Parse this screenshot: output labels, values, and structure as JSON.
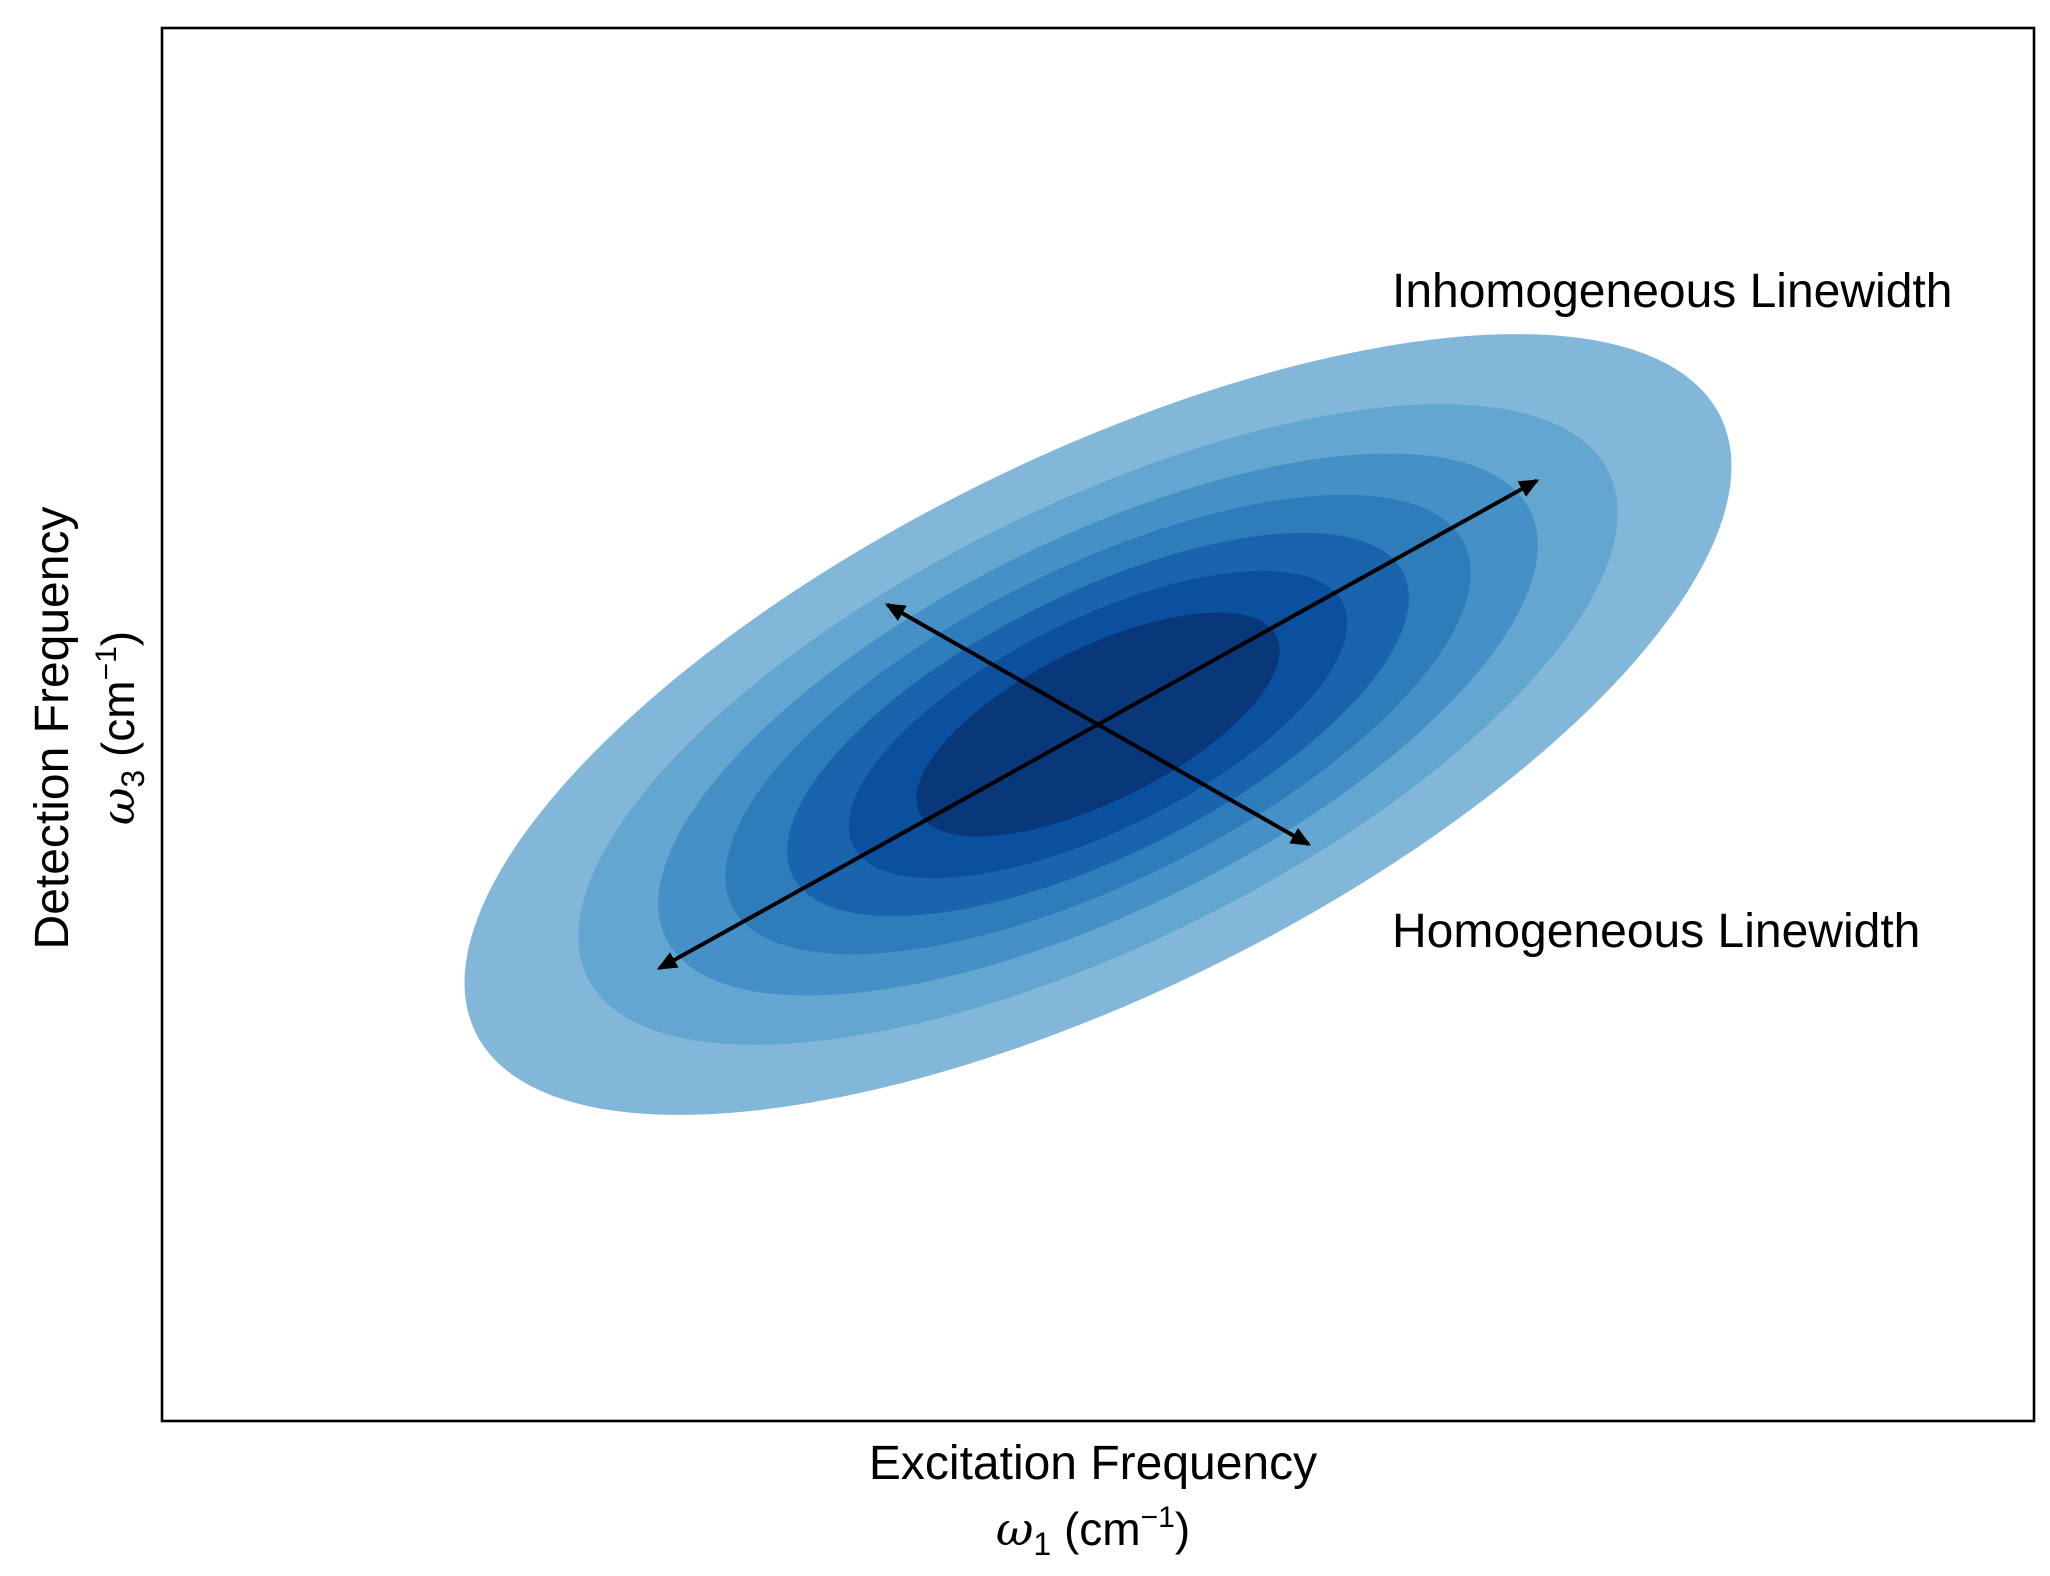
{
  "chart_data": {
    "type": "heatmap",
    "subtype": "filled-contour",
    "title": "",
    "grid": false,
    "ticks": false,
    "xlabel": {
      "line1": "Excitation Frequency",
      "symbol": "ω",
      "subscript": "1",
      "unit_open": " (cm",
      "unit_exp": "−1",
      "unit_close": ")"
    },
    "ylabel": {
      "line1": "Detection Frequency",
      "symbol": "ω",
      "subscript": "3",
      "unit_open": " (cm",
      "unit_exp": "−1",
      "unit_close": ")"
    },
    "xlim": [
      -3.2,
      3.2
    ],
    "ylim": [
      -3.2,
      3.2
    ],
    "peak": {
      "center": [
        0,
        0
      ],
      "inhomogeneous_direction_deg": 37,
      "sigma_inhomogeneous": 1.25,
      "sigma_homogeneous": 0.55
    },
    "levels": [
      0.12,
      0.24,
      0.36,
      0.48,
      0.6,
      0.72,
      0.84
    ],
    "level_colors": [
      "#82b7d9",
      "#63a7d1",
      "#4590c6",
      "#2f7cbb",
      "#1a64ad",
      "#0b509e",
      "#08387a"
    ],
    "colormap": "Blues",
    "annotations": [
      {
        "name": "inhomogeneous-linewidth",
        "text": "Inhomogeneous Linewidth",
        "arrow_from": [
          -1.5,
          -1.12
        ],
        "arrow_to": [
          1.5,
          1.12
        ]
      },
      {
        "name": "homogeneous-linewidth",
        "text": "Homogeneous Linewidth",
        "arrow_from": [
          -0.72,
          0.55
        ],
        "arrow_to": [
          0.72,
          -0.55
        ]
      }
    ]
  }
}
